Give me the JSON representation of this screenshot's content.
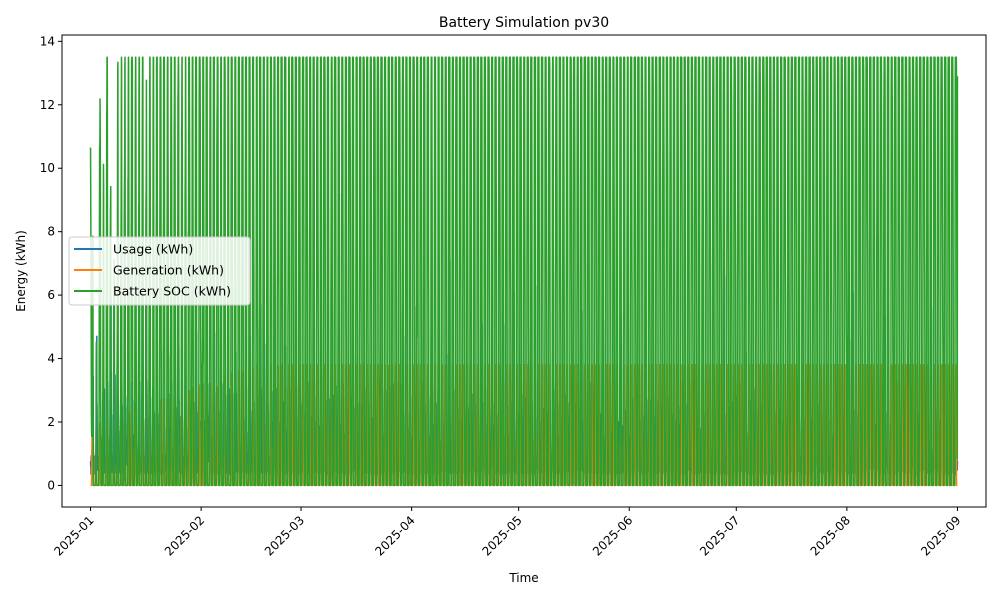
{
  "chart_data": {
    "type": "line",
    "title": "Battery Simulation pv30",
    "xlabel": "Time",
    "ylabel": "Energy (kWh)",
    "x_range": [
      "2025-01-01",
      "2025-09-01"
    ],
    "xlim": [
      "2024-12-24",
      "2025-09-09"
    ],
    "ylim": [
      -0.68,
      14.2
    ],
    "x_ticks": [
      "2025-01",
      "2025-02",
      "2025-03",
      "2025-04",
      "2025-05",
      "2025-06",
      "2025-07",
      "2025-08",
      "2025-09"
    ],
    "y_ticks": [
      0,
      2,
      4,
      6,
      8,
      10,
      12,
      14
    ],
    "grid": false,
    "legend_position": "center-left",
    "series": [
      {
        "name": "Usage (kWh)",
        "color": "#1f77b4",
        "min": 0,
        "max": 7.1,
        "peaks": [
          {
            "x": "2025-01-02",
            "y": 4.7
          },
          {
            "x": "2025-01-06",
            "y": 5.9
          },
          {
            "x": "2025-01-09",
            "y": 3.4
          },
          {
            "x": "2025-01-14",
            "y": 6.1
          },
          {
            "x": "2025-01-25",
            "y": 4.4
          },
          {
            "x": "2025-01-30",
            "y": 4.8
          },
          {
            "x": "2025-02-04",
            "y": 4.8
          },
          {
            "x": "2025-02-10",
            "y": 4.2
          },
          {
            "x": "2025-02-14",
            "y": 4.7
          },
          {
            "x": "2025-02-17",
            "y": 5.7
          },
          {
            "x": "2025-02-24",
            "y": 4.4
          },
          {
            "x": "2025-03-15",
            "y": 4.0
          },
          {
            "x": "2025-03-29",
            "y": 4.7
          },
          {
            "x": "2025-04-11",
            "y": 7.1
          },
          {
            "x": "2025-04-20",
            "y": 5.1
          },
          {
            "x": "2025-04-26",
            "y": 5.1
          },
          {
            "x": "2025-04-29",
            "y": 6.1
          },
          {
            "x": "2025-05-05",
            "y": 6.3
          },
          {
            "x": "2025-05-18",
            "y": 5.5
          },
          {
            "x": "2025-05-24",
            "y": 5.2
          },
          {
            "x": "2025-05-29",
            "y": 5.4
          },
          {
            "x": "2025-06-20",
            "y": 4.1
          },
          {
            "x": "2025-06-27",
            "y": 6.6
          },
          {
            "x": "2025-07-03",
            "y": 4.2
          },
          {
            "x": "2025-07-18",
            "y": 3.3
          },
          {
            "x": "2025-07-27",
            "y": 3.6
          },
          {
            "x": "2025-08-01",
            "y": 4.6
          },
          {
            "x": "2025-08-02",
            "y": 6.1
          },
          {
            "x": "2025-08-11",
            "y": 5.3
          },
          {
            "x": "2025-08-12",
            "y": 5.5
          },
          {
            "x": "2025-08-24",
            "y": 5.6
          }
        ]
      },
      {
        "name": "Generation (kWh)",
        "color": "#ff7f0e",
        "min": 0,
        "max": 3.8
      },
      {
        "name": "Battery SOC (kWh)",
        "color": "#2ca02c",
        "min": 0,
        "max": 13.5,
        "start": 12.1,
        "end": 12.9
      }
    ]
  }
}
